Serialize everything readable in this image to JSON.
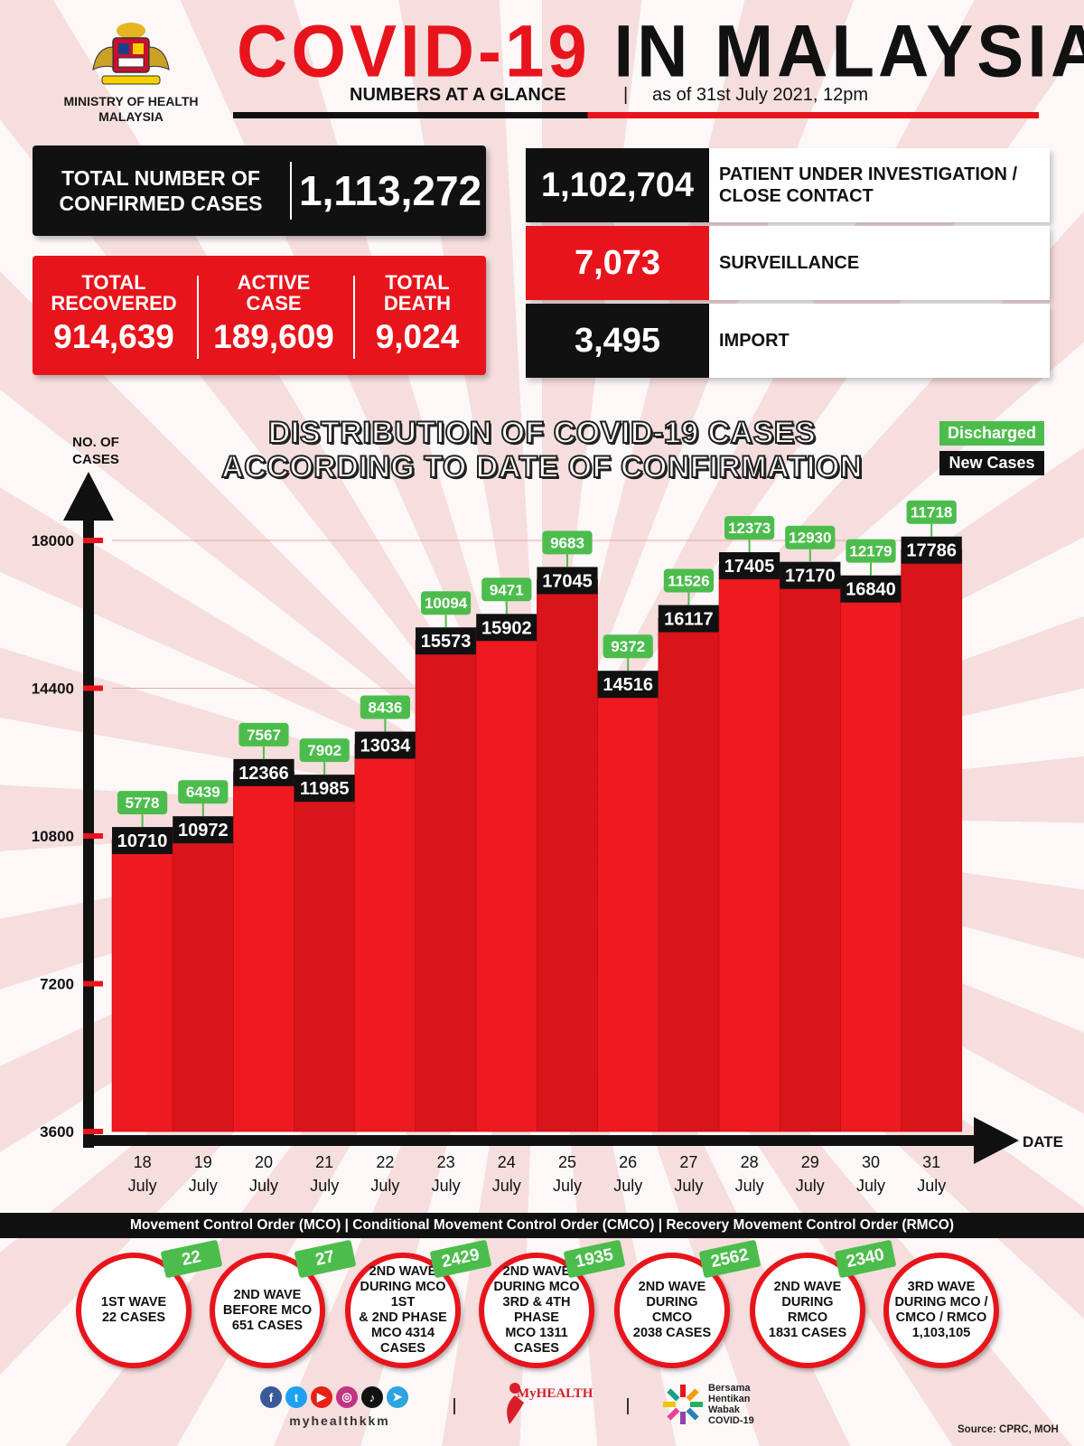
{
  "header": {
    "ministry_line1": "MINISTRY OF HEALTH",
    "ministry_line2": "MALAYSIA",
    "title_part1": "COVID-19",
    "title_part2": "IN MALAYSIA",
    "subtitle": "NUMBERS AT A GLANCE",
    "separator": "|",
    "as_of": "as of 31st July 2021, 12pm"
  },
  "totals": {
    "confirmed_label_1": "TOTAL NUMBER OF",
    "confirmed_label_2": "CONFIRMED CASES",
    "confirmed_value": "1,113,272",
    "recovered_label_1": "TOTAL",
    "recovered_label_2": "RECOVERED",
    "recovered_value": "914,639",
    "active_label_1": "ACTIVE",
    "active_label_2": "CASE",
    "active_value": "189,609",
    "death_label_1": "TOTAL",
    "death_label_2": "DEATH",
    "death_value": "9,024"
  },
  "breakdown": [
    {
      "value": "1,102,704",
      "label_1": "PATIENT UNDER INVESTIGATION /",
      "label_2": "CLOSE CONTACT",
      "color": "#111111"
    },
    {
      "value": "7,073",
      "label_1": "SURVEILLANCE",
      "label_2": "",
      "color": "#e8141c"
    },
    {
      "value": "3,495",
      "label_1": "IMPORT",
      "label_2": "",
      "color": "#111111"
    }
  ],
  "chart_data": {
    "type": "bar",
    "title": "DISTRIBUTION OF COVID-19 CASES ACCORDING TO DATE OF CONFIRMATION",
    "title_line1": "DISTRIBUTION OF COVID-19 CASES",
    "title_line2": "ACCORDING TO DATE OF CONFIRMATION",
    "ylabel_line1": "NO. OF",
    "ylabel_line2": "CASES",
    "xlabel": "DATE",
    "ylim": [
      3600,
      18000
    ],
    "yticks": [
      3600,
      7200,
      10800,
      14400,
      18000
    ],
    "categories": [
      [
        "18",
        "July"
      ],
      [
        "19",
        "July"
      ],
      [
        "20",
        "July"
      ],
      [
        "21",
        "July"
      ],
      [
        "22",
        "July"
      ],
      [
        "23",
        "July"
      ],
      [
        "24",
        "July"
      ],
      [
        "25",
        "July"
      ],
      [
        "26",
        "July"
      ],
      [
        "27",
        "July"
      ],
      [
        "28",
        "July"
      ],
      [
        "29",
        "July"
      ],
      [
        "30",
        "July"
      ],
      [
        "31",
        "July"
      ]
    ],
    "series": [
      {
        "name": "New Cases",
        "color": "#e8141c",
        "label_color": "#111111",
        "values": [
          10710,
          10972,
          12366,
          11985,
          13034,
          15573,
          15902,
          17045,
          14516,
          16117,
          17405,
          17170,
          16840,
          17786
        ]
      },
      {
        "name": "Discharged",
        "color": "#4cbd4c",
        "values": [
          5778,
          6439,
          7567,
          7902,
          8436,
          10094,
          9471,
          9683,
          9372,
          11526,
          12373,
          12930,
          12179,
          11718
        ]
      }
    ],
    "legend_position": "top-right",
    "grid": true
  },
  "mco": {
    "banner": "Movement Control Order (MCO) | Conditional Movement Control Order (CMCO) | Recovery Movement Control Order (RMCO)",
    "waves": [
      {
        "text": "1ST WAVE\n22 CASES",
        "tag": "22"
      },
      {
        "text": "2ND WAVE\nBEFORE MCO\n651 CASES",
        "tag": "27"
      },
      {
        "text": "2ND WAVE\nDURING MCO 1ST\n& 2ND PHASE\nMCO 4314\nCASES",
        "tag": "2429"
      },
      {
        "text": "2ND WAVE\nDURING MCO\n3RD & 4TH PHASE\nMCO 1311\nCASES",
        "tag": "1935"
      },
      {
        "text": "2ND WAVE\nDURING CMCO\n2038 CASES",
        "tag": "2562"
      },
      {
        "text": "2ND WAVE\nDURING RMCO\n1831 CASES",
        "tag": "2340"
      },
      {
        "text": "3RD WAVE\nDURING MCO /\nCMCO / RMCO\n1,103,105",
        "tag": ""
      }
    ]
  },
  "footer": {
    "social_handle": "myhealthkkm",
    "social_icons": [
      "facebook-icon",
      "twitter-icon",
      "youtube-icon",
      "instagram-icon",
      "tiktok-icon",
      "telegram-icon"
    ],
    "myhealth": "MyHEALTH",
    "bersama_1": "Bersama",
    "bersama_2": "Hentikan",
    "bersama_3": "Wabak",
    "bersama_4": "COVID-19",
    "source": "Source: CPRC, MOH"
  }
}
